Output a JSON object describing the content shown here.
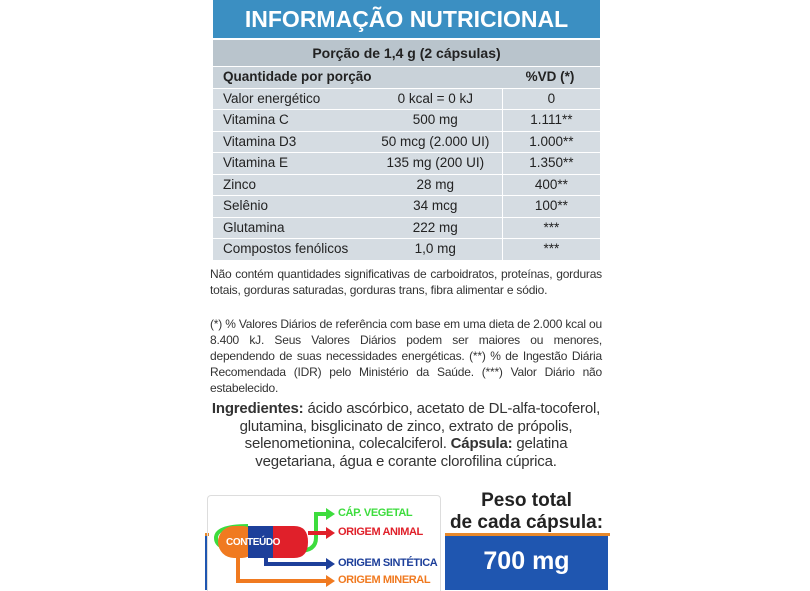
{
  "title": "INFORMAÇÃO NUTRICIONAL",
  "portion": "Porção de 1,4 g (2 cápsulas)",
  "table": {
    "header": {
      "name": "Quantidade por porção",
      "vd": "%VD (*)"
    },
    "rows": [
      {
        "name": "Valor energético",
        "amount": "0 kcal = 0 kJ",
        "vd": "0"
      },
      {
        "name": "Vitamina C",
        "amount": "500 mg",
        "vd": "1.111**"
      },
      {
        "name": "Vitamina D3",
        "amount": "50 mcg (2.000 UI)",
        "vd": "1.000**"
      },
      {
        "name": "Vitamina E",
        "amount": "135 mg (200 UI)",
        "vd": "1.350**"
      },
      {
        "name": "Zinco",
        "amount": "28 mg",
        "vd": "400**"
      },
      {
        "name": "Selênio",
        "amount": "34 mcg",
        "vd": "100**"
      },
      {
        "name": "Glutamina",
        "amount": "222 mg",
        "vd": "***"
      },
      {
        "name": "Compostos fenólicos",
        "amount": "1,0 mg",
        "vd": "***"
      }
    ]
  },
  "note1": "Não contém quantidades significativas de carboidratos, proteínas, gorduras totais, gorduras saturadas, gorduras trans, fibra alimentar e sódio.",
  "note2": "(*) % Valores Diários de referência com base em uma dieta de 2.000 kcal ou 8.400 kJ. Seus Valores Diários podem ser maiores ou menores, dependendo de suas necessidades energéticas. (**) % de Ingestão Diária Recomendada (IDR) pelo Ministério da Saúde. (***) Valor Diário não estabelecido.",
  "ingredients": {
    "label": "Ingredientes:",
    "text": " ácido ascórbico, acetato de DL-alfa-tocoferol, glutamina, bisglicinato de zinco, extrato de própolis, selenometionina, colecalciferol. ",
    "capsule_label": "Cápsula:",
    "capsule_text": " gelatina vegetariana, água e corante clorofilina cúprica."
  },
  "diagram": {
    "center": "CONTEÚDO",
    "items": [
      {
        "label": "CÁP. VEGETAL",
        "color": "#3ddc3d"
      },
      {
        "label": "ORIGEM ANIMAL",
        "color": "#e0202a"
      },
      {
        "label": "ORIGEM SINTÉTICA",
        "color": "#1d3f9a"
      },
      {
        "label": "ORIGEM MINERAL",
        "color": "#f07a20"
      }
    ]
  },
  "weight": {
    "label_line1": "Peso total",
    "label_line2": "de cada cápsula:",
    "value": "700 mg"
  }
}
